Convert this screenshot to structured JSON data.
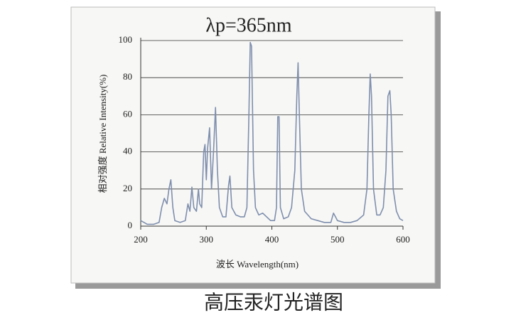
{
  "chart_data": {
    "type": "line",
    "title": "λp=365nm",
    "caption": "高压汞灯光谱图",
    "x_label": "波长  Wavelength(nm)",
    "y_label": "相对强度  Relative Intensity(%)",
    "x": [
      200,
      205,
      210,
      220,
      228,
      232,
      236,
      240,
      243,
      246,
      249,
      252,
      260,
      268,
      272,
      275,
      278,
      281,
      285,
      288,
      290,
      293,
      296,
      298,
      300,
      302,
      305,
      308,
      311,
      314,
      317,
      320,
      325,
      330,
      334,
      336,
      339,
      345,
      352,
      358,
      362,
      365,
      367,
      369,
      372,
      375,
      380,
      386,
      392,
      398,
      404,
      407,
      409,
      411,
      413,
      418,
      425,
      430,
      435,
      438,
      440,
      442,
      445,
      450,
      460,
      470,
      480,
      490,
      494,
      497,
      500,
      510,
      520,
      530,
      540,
      545,
      548,
      550,
      552,
      555,
      560,
      565,
      570,
      574,
      577,
      580,
      582,
      585,
      590,
      595,
      600
    ],
    "values": [
      3,
      2,
      1,
      1,
      2,
      10,
      15,
      12,
      20,
      25,
      10,
      3,
      2,
      3,
      12,
      8,
      21,
      10,
      8,
      20,
      12,
      10,
      40,
      44,
      25,
      42,
      53,
      20,
      40,
      64,
      30,
      10,
      5,
      5,
      22,
      27,
      10,
      6,
      5,
      5,
      10,
      60,
      99,
      97,
      30,
      10,
      6,
      7,
      5,
      3,
      3,
      10,
      59,
      59,
      10,
      4,
      5,
      10,
      30,
      70,
      88,
      60,
      20,
      8,
      4,
      3,
      2,
      2,
      7,
      5,
      3,
      2,
      2,
      3,
      6,
      20,
      60,
      82,
      70,
      20,
      6,
      6,
      10,
      30,
      70,
      73,
      60,
      20,
      8,
      4,
      3
    ],
    "color": "#7f8fae",
    "xlim": [
      200,
      600
    ],
    "xticks": [
      200,
      300,
      400,
      500,
      600
    ],
    "ylim": [
      0,
      100
    ],
    "yticks": [
      0,
      20,
      40,
      60,
      80,
      100
    ],
    "grid": true
  }
}
